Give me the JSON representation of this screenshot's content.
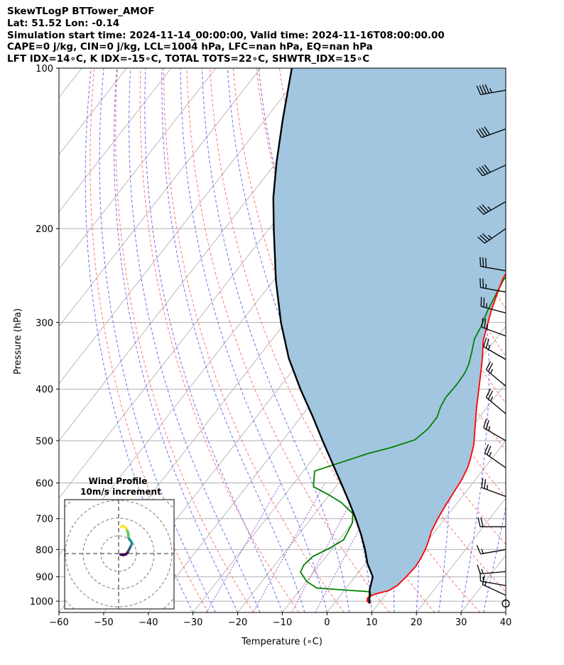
{
  "header": {
    "line1": "SkewTLogP BTTower_AMOF",
    "line2": "Lat: 51.52   Lon: -0.14",
    "line3": "Simulation start time: 2024-11-14_00:00:00, Valid time: 2024-11-16T08:00:00.00",
    "line4": "CAPE=0 j/kg, CIN=0 j/kg, LCL=1004 hPa, LFC=nan hPa, EQ=nan hPa",
    "line5": "LFT IDX=14∘C, K IDX=-15∘C, TOTAL TOTS=22∘C, SHWTR_IDX=15∘C"
  },
  "chart_data": {
    "type": "line",
    "subtype": "skew-T log-P diagram",
    "xlabel": "Temperature (∘C)",
    "ylabel": "Pressure (hPa)",
    "xlim": [
      -60,
      40
    ],
    "ylim": [
      1050,
      100
    ],
    "y_scale": "log",
    "xticks": [
      "−60",
      "−50",
      "−40",
      "−30",
      "−20",
      "−10",
      "0",
      "10",
      "20",
      "30",
      "40"
    ],
    "yticks": [
      "100",
      "200",
      "300",
      "400",
      "500",
      "600",
      "700",
      "800",
      "900",
      "1000"
    ],
    "grid": true,
    "colors": {
      "temperature": "#ff0000",
      "dewpoint": "#008000",
      "parcel": "#000000",
      "shade": "#a2c6e0",
      "dry_adiabat": "#ff6666",
      "moist_adiabat": "#5555ee",
      "mixing_ratio": "#8844cc",
      "isotherm": "#aaaaaa",
      "hodograph": [
        "#440154",
        "#3b528b",
        "#21918c",
        "#5ec962",
        "#fde725"
      ]
    },
    "series": [
      {
        "role": "temperature",
        "points": [
          [
            8.0,
            1010
          ],
          [
            7.0,
            1000
          ],
          [
            6.5,
            985
          ],
          [
            7.5,
            970
          ],
          [
            10,
            955
          ],
          [
            11,
            935
          ],
          [
            11.5,
            900
          ],
          [
            11.8,
            860
          ],
          [
            11.5,
            830
          ],
          [
            11,
            800
          ],
          [
            10.2,
            770
          ],
          [
            9.2,
            740
          ],
          [
            8.4,
            700
          ],
          [
            7.8,
            660
          ],
          [
            7.3,
            620
          ],
          [
            6.9,
            590
          ],
          [
            6.1,
            560
          ],
          [
            5.2,
            540
          ],
          [
            3.6,
            510
          ],
          [
            1.4,
            480
          ],
          [
            -2.2,
            435
          ],
          [
            -5.5,
            395
          ],
          [
            -8.2,
            365
          ],
          [
            -10.2,
            345
          ],
          [
            -12.5,
            325
          ],
          [
            -14.2,
            305
          ],
          [
            -16,
            285
          ],
          [
            -17.6,
            265
          ],
          [
            -19,
            248
          ],
          [
            -19.5,
            233
          ],
          [
            -19.3,
            221
          ],
          [
            -18.6,
            209
          ],
          [
            -17.7,
            199
          ],
          [
            -16.8,
            190
          ],
          [
            -15.5,
            181
          ],
          [
            -13,
            170
          ],
          [
            -10.6,
            160
          ],
          [
            -9.2,
            152
          ],
          [
            -7.8,
            145
          ],
          [
            -6.4,
            137
          ],
          [
            -5.2,
            130
          ],
          [
            -4.6,
            125
          ],
          [
            -3.8,
            117
          ],
          [
            -3.3,
            110
          ],
          [
            -2.5,
            100
          ]
        ]
      },
      {
        "role": "dewpoint",
        "points": [
          [
            7.5,
            1005
          ],
          [
            7.0,
            990
          ],
          [
            6.8,
            975
          ],
          [
            6,
            960
          ],
          [
            -6.5,
            945
          ],
          [
            -10,
            918
          ],
          [
            -13,
            882
          ],
          [
            -13.5,
            855
          ],
          [
            -13,
            825
          ],
          [
            -10.5,
            793
          ],
          [
            -9,
            767
          ],
          [
            -9.5,
            738
          ],
          [
            -10,
            713
          ],
          [
            -11.5,
            685
          ],
          [
            -16,
            653
          ],
          [
            -20.5,
            630
          ],
          [
            -25,
            610
          ],
          [
            -27.5,
            570
          ],
          [
            -18.5,
            528
          ],
          [
            -14.5,
            515
          ],
          [
            -10.5,
            498
          ],
          [
            -9.5,
            475
          ],
          [
            -9.5,
            452
          ],
          [
            -10.5,
            432
          ],
          [
            -11,
            415
          ],
          [
            -10.8,
            392
          ],
          [
            -11,
            373
          ],
          [
            -11.6,
            360
          ],
          [
            -13.2,
            340
          ],
          [
            -14.8,
            322
          ],
          [
            -15.5,
            305
          ],
          [
            -16.8,
            285
          ],
          [
            -17.7,
            267
          ],
          [
            -18.6,
            250
          ],
          [
            -18.7,
            235
          ],
          [
            -17.9,
            223
          ],
          [
            -17.2,
            210
          ],
          [
            -16.7,
            197
          ],
          [
            -16.5,
            180
          ],
          [
            -16.7,
            165
          ],
          [
            -16.9,
            150
          ],
          [
            -17.7,
            140
          ],
          [
            -18.5,
            133
          ],
          [
            -18.3,
            126
          ],
          [
            -17.3,
            122
          ],
          [
            -16.4,
            117
          ],
          [
            -15.7,
            112
          ],
          [
            -14.7,
            106
          ],
          [
            -14,
            102
          ],
          [
            -13.6,
            100
          ]
        ]
      },
      {
        "role": "parcel",
        "points": [
          [
            8.0,
            1010
          ],
          [
            7.5,
            1000
          ],
          [
            5.5,
            950
          ],
          [
            4,
            900
          ],
          [
            0.5,
            850
          ],
          [
            -2.5,
            800
          ],
          [
            -6,
            750
          ],
          [
            -10,
            700
          ],
          [
            -14.5,
            650
          ],
          [
            -19.5,
            600
          ],
          [
            -25,
            550
          ],
          [
            -31,
            500
          ],
          [
            -37.5,
            450
          ],
          [
            -45,
            400
          ],
          [
            -53,
            350
          ],
          [
            -61,
            300
          ],
          [
            -69.5,
            250
          ],
          [
            -79,
            200
          ],
          [
            -84.5,
            175
          ],
          [
            -90,
            150
          ],
          [
            -96,
            125
          ],
          [
            -103,
            100
          ]
        ]
      }
    ],
    "wind_barbs": [
      {
        "p": 110,
        "speed_kt": 45,
        "dir_deg": 260
      },
      {
        "p": 130,
        "speed_kt": 40,
        "dir_deg": 250
      },
      {
        "p": 152,
        "speed_kt": 40,
        "dir_deg": 245
      },
      {
        "p": 178,
        "speed_kt": 35,
        "dir_deg": 240
      },
      {
        "p": 200,
        "speed_kt": 35,
        "dir_deg": 235
      },
      {
        "p": 240,
        "speed_kt": 30,
        "dir_deg": 280
      },
      {
        "p": 263,
        "speed_kt": 25,
        "dir_deg": 280
      },
      {
        "p": 288,
        "speed_kt": 25,
        "dir_deg": 285
      },
      {
        "p": 318,
        "speed_kt": 25,
        "dir_deg": 290
      },
      {
        "p": 352,
        "speed_kt": 25,
        "dir_deg": 300
      },
      {
        "p": 395,
        "speed_kt": 25,
        "dir_deg": 310
      },
      {
        "p": 445,
        "speed_kt": 25,
        "dir_deg": 310
      },
      {
        "p": 500,
        "speed_kt": 25,
        "dir_deg": 300
      },
      {
        "p": 562,
        "speed_kt": 25,
        "dir_deg": 305
      },
      {
        "p": 636,
        "speed_kt": 25,
        "dir_deg": 290
      },
      {
        "p": 725,
        "speed_kt": 20,
        "dir_deg": 270
      },
      {
        "p": 800,
        "speed_kt": 15,
        "dir_deg": 260
      },
      {
        "p": 880,
        "speed_kt": 15,
        "dir_deg": 265
      },
      {
        "p": 935,
        "speed_kt": 15,
        "dir_deg": 280
      },
      {
        "p": 975,
        "speed_kt": 15,
        "dir_deg": 295
      },
      {
        "p": 1010,
        "speed_kt": 0,
        "dir_deg": 0
      }
    ],
    "hodograph": {
      "title": "Wind Profile",
      "subtitle": "10m/s increment",
      "ring_step_ms": 10,
      "points": [
        [
          1.0,
          -0.5
        ],
        [
          2.5,
          -0.8
        ],
        [
          4.0,
          -0.5
        ],
        [
          5.0,
          0.5
        ],
        [
          5.5,
          1.5
        ],
        [
          6.0,
          2.5
        ],
        [
          6.5,
          3.5
        ],
        [
          7.0,
          4.5
        ],
        [
          7.5,
          5.5
        ],
        [
          7.0,
          7.0
        ],
        [
          6.0,
          8.0
        ],
        [
          5.5,
          9.5
        ],
        [
          5.5,
          11.0
        ],
        [
          5.0,
          12.5
        ],
        [
          4.5,
          14.0
        ],
        [
          3.5,
          15.0
        ],
        [
          2.5,
          15.5
        ],
        [
          1.5,
          15.0
        ]
      ]
    }
  }
}
